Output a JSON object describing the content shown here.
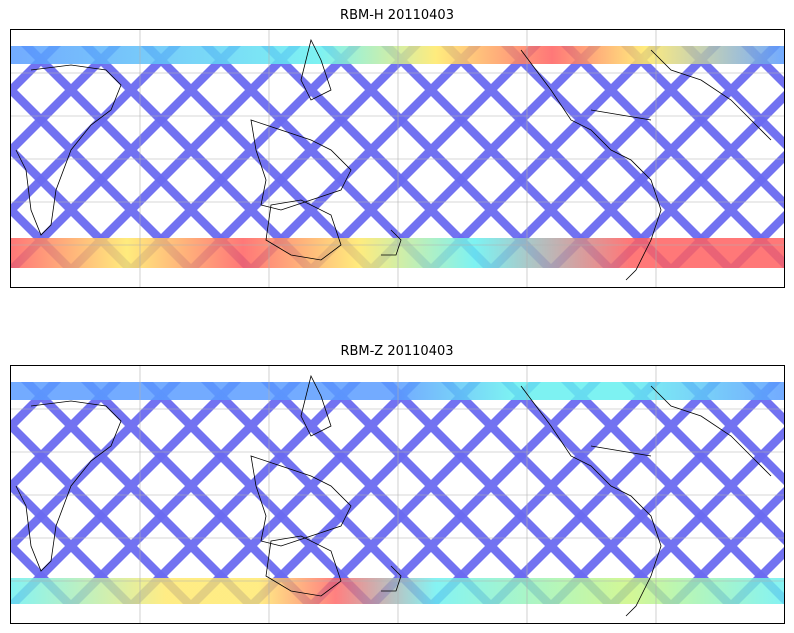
{
  "panels": [
    {
      "title": "RBM-H 20110403"
    },
    {
      "title": "RBM-Z 20110403"
    }
  ],
  "colors": {
    "low": "#6a6af0",
    "midlow": "#5a9cff",
    "mid": "#66f0f0",
    "midhigh": "#c8f57a",
    "high": "#ffe866",
    "max": "#ff6060",
    "coast": "#000000",
    "grid": "#b0b0b0"
  }
}
